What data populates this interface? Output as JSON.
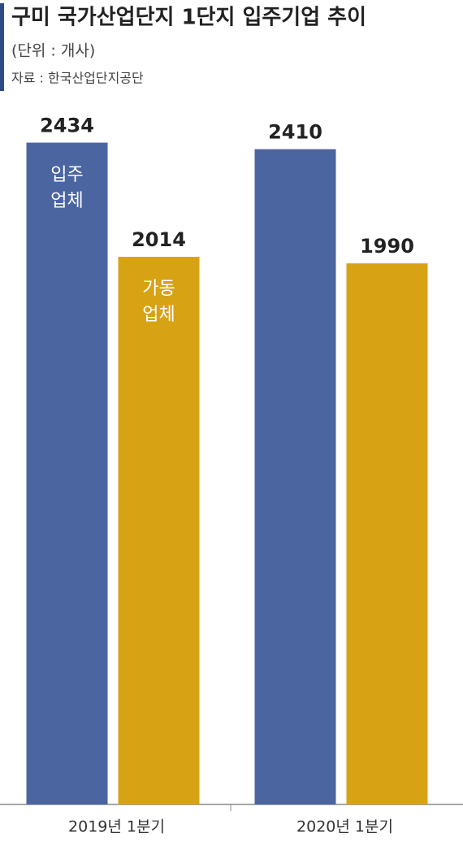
{
  "chart_data": {
    "type": "bar",
    "title": "구미 국가산업단지 1단지 입주기업 추이",
    "subtitle": "(단위 : 개사)",
    "source": "자료 : 한국산업단지공단",
    "categories": [
      "2019년 1분기",
      "2020년 1분기"
    ],
    "series": [
      {
        "name": "입주\n업체",
        "color": "#4a65a0",
        "values": [
          2434,
          2410
        ]
      },
      {
        "name": "가동\n업체",
        "color": "#d7a315",
        "values": [
          2014,
          1990
        ]
      }
    ],
    "ylim": [
      0,
      2600
    ]
  }
}
